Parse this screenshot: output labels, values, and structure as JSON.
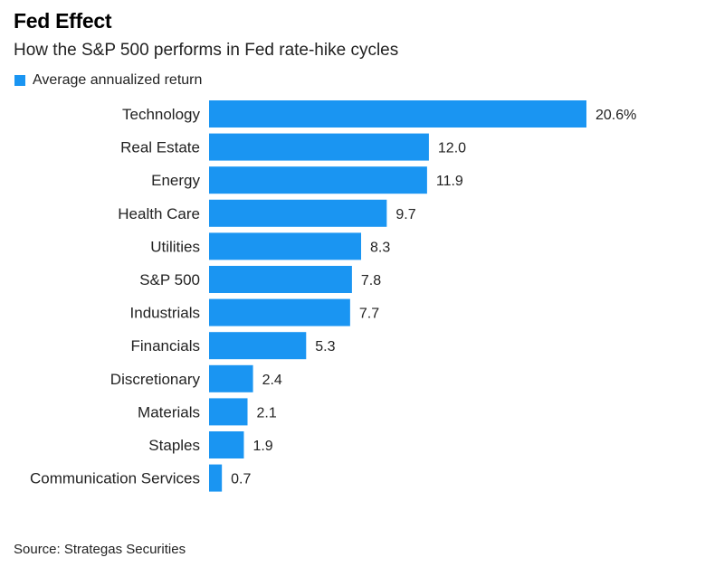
{
  "header": {
    "title": "Fed Effect",
    "subtitle": "How the S&P 500 performs in Fed rate-hike cycles"
  },
  "legend": {
    "label": "Average annualized return",
    "color": "#1a95f2"
  },
  "chart_data": {
    "type": "bar",
    "orientation": "horizontal",
    "categories": [
      "Technology",
      "Real Estate",
      "Energy",
      "Health Care",
      "Utilities",
      "S&P 500",
      "Industrials",
      "Financials",
      "Discretionary",
      "Materials",
      "Staples",
      "Communication Services"
    ],
    "series": [
      {
        "name": "Average annualized return",
        "values": [
          20.6,
          12.0,
          11.9,
          9.7,
          8.3,
          7.8,
          7.7,
          5.3,
          2.4,
          2.1,
          1.9,
          0.7
        ],
        "labels": [
          "20.6%",
          "12.0",
          "11.9",
          "9.7",
          "8.3",
          "7.8",
          "7.7",
          "5.3",
          "2.4",
          "2.1",
          "1.9",
          "0.7"
        ],
        "color": "#1a95f2"
      }
    ],
    "xlim": [
      0,
      20.6
    ],
    "grid": false,
    "legend_position": "top-left"
  },
  "footer": {
    "source": "Source: Strategas Securities"
  }
}
